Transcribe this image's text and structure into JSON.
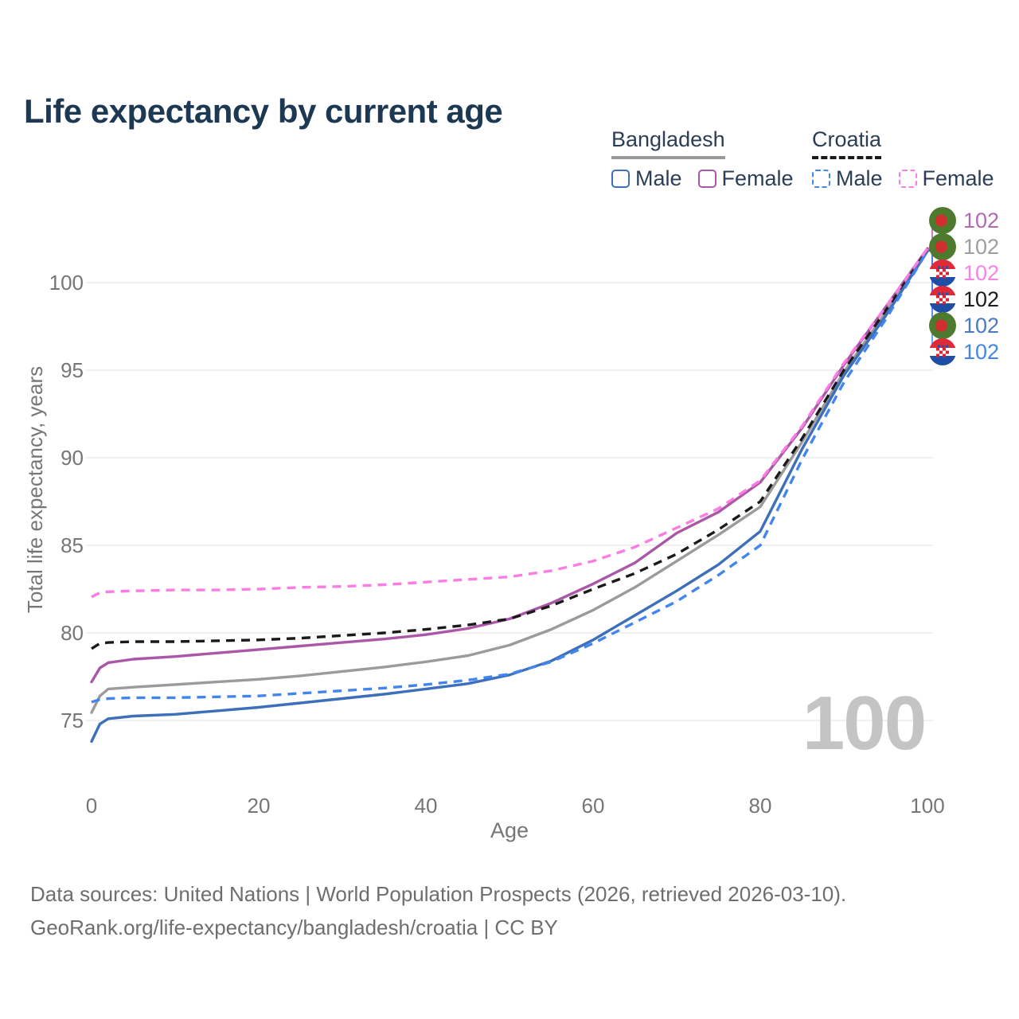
{
  "page": {
    "title": "Life expectancy by current age"
  },
  "legend": {
    "groups": [
      {
        "label": "Bangladesh",
        "dash": false,
        "underline_color": "#9a9a9a",
        "items": [
          {
            "label": "Male",
            "color": "#3e6fba",
            "dash": false
          },
          {
            "label": "Female",
            "color": "#ab57a7",
            "dash": false
          }
        ]
      },
      {
        "label": "Croatia",
        "dash": true,
        "underline_color": "#1a1a1a",
        "items": [
          {
            "label": "Male",
            "color": "#4285ef",
            "dash": true
          },
          {
            "label": "Female",
            "color": "#fb7ce2",
            "dash": true
          }
        ]
      }
    ]
  },
  "chart_data": {
    "type": "line",
    "title": "Life expectancy by current age",
    "xlabel": "Age",
    "ylabel": "Total life expectancy, years",
    "xlim": [
      0,
      100
    ],
    "ylim": [
      73,
      103
    ],
    "grid": "horizontal-only",
    "xticks": [
      "0",
      "20",
      "40",
      "60",
      "80",
      "100"
    ],
    "yticks": [
      "75",
      "80",
      "85",
      "90",
      "95",
      "100"
    ],
    "age_indicator": "100",
    "x": [
      0,
      1,
      2,
      5,
      10,
      15,
      20,
      25,
      30,
      35,
      40,
      45,
      50,
      55,
      60,
      65,
      70,
      75,
      80,
      85,
      90,
      95,
      100
    ],
    "series": [
      {
        "id": "bangladesh-female",
        "flag": "bangladesh",
        "color": "#ab57a7",
        "label_color": "#b06ab2",
        "dash": false,
        "end_label": "102",
        "values": [
          77.2,
          78.0,
          78.3,
          78.5,
          78.65,
          78.85,
          79.05,
          79.25,
          79.45,
          79.65,
          79.9,
          80.25,
          80.8,
          81.7,
          82.8,
          84.0,
          85.7,
          86.9,
          88.6,
          91.7,
          95.3,
          98.6,
          101.95
        ]
      },
      {
        "id": "bangladesh-all",
        "flag": "bangladesh",
        "color": "#9b9b9b",
        "label_color": "#9e9e9e",
        "dash": false,
        "end_label": "102",
        "values": [
          75.45,
          76.4,
          76.8,
          76.9,
          77.05,
          77.2,
          77.35,
          77.55,
          77.8,
          78.05,
          78.35,
          78.7,
          79.3,
          80.2,
          81.3,
          82.6,
          84.1,
          85.6,
          87.2,
          90.9,
          94.9,
          98.3,
          101.85
        ]
      },
      {
        "id": "croatia-female",
        "flag": "croatia",
        "color": "#fb7ce2",
        "label_color": "#f783e8",
        "dash": true,
        "end_label": "102",
        "values": [
          82.05,
          82.3,
          82.35,
          82.4,
          82.45,
          82.45,
          82.5,
          82.6,
          82.65,
          82.75,
          82.9,
          83.05,
          83.2,
          83.55,
          84.1,
          84.9,
          86.0,
          87.1,
          88.7,
          91.8,
          95.4,
          98.6,
          101.95
        ]
      },
      {
        "id": "croatia-all",
        "flag": "croatia",
        "color": "#1a1a1a",
        "label_color": "#1c1c1c",
        "dash": true,
        "end_label": "102",
        "values": [
          79.1,
          79.4,
          79.45,
          79.5,
          79.5,
          79.55,
          79.6,
          79.7,
          79.85,
          80.0,
          80.2,
          80.45,
          80.8,
          81.55,
          82.5,
          83.4,
          84.5,
          85.9,
          87.5,
          91.1,
          95.0,
          98.4,
          101.85
        ]
      },
      {
        "id": "bangladesh-male",
        "flag": "bangladesh",
        "color": "#3e6fba",
        "label_color": "#4a7ac0",
        "dash": false,
        "end_label": "102",
        "values": [
          73.8,
          74.8,
          75.1,
          75.25,
          75.35,
          75.55,
          75.75,
          76.0,
          76.25,
          76.5,
          76.8,
          77.1,
          77.6,
          78.4,
          79.6,
          81.0,
          82.4,
          83.9,
          85.8,
          90.5,
          94.7,
          98.1,
          101.8
        ]
      },
      {
        "id": "croatia-male",
        "flag": "croatia",
        "color": "#4285ef",
        "label_color": "#4287e8",
        "dash": true,
        "end_label": "102",
        "values": [
          76.05,
          76.2,
          76.25,
          76.3,
          76.3,
          76.35,
          76.4,
          76.55,
          76.7,
          76.85,
          77.05,
          77.3,
          77.65,
          78.35,
          79.4,
          80.6,
          81.8,
          83.3,
          85.0,
          89.9,
          94.3,
          97.9,
          101.8
        ]
      }
    ]
  },
  "footer": {
    "line1": "Data sources: United Nations | World Population Prospects (2026, retrieved 2026-03-10).",
    "line2": "GeoRank.org/life-expectancy/bangladesh/croatia | CC BY"
  }
}
